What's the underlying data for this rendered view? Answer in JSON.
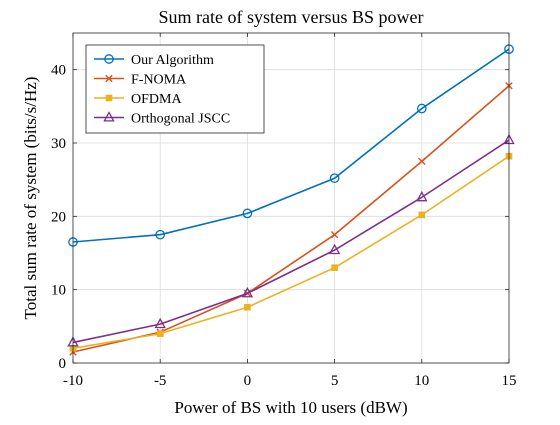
{
  "chart_data": {
    "type": "line",
    "title": "Sum rate of system versus BS power",
    "xlabel": "Power of BS with 10 users (dBW)",
    "ylabel": "Total sum rate of system (bits/s/Hz)",
    "x": [
      -10,
      -5,
      0,
      5,
      10,
      15
    ],
    "xlim": [
      -10,
      15
    ],
    "ylim": [
      0,
      45
    ],
    "xticks": [
      "-10",
      "-5",
      "0",
      "5",
      "10",
      "15"
    ],
    "yticks": [
      "0",
      "10",
      "20",
      "30",
      "40"
    ],
    "grid": true,
    "legend_position": "top-left",
    "series": [
      {
        "name": "Our Algorithm",
        "color": "#0072BD",
        "marker": "circle",
        "values": [
          16.5,
          17.5,
          20.4,
          25.2,
          34.7,
          42.8
        ]
      },
      {
        "name": "F-NOMA",
        "color": "#D95319",
        "marker": "x",
        "values": [
          1.5,
          4.2,
          9.5,
          17.5,
          27.5,
          37.8
        ]
      },
      {
        "name": "OFDMA",
        "color": "#EDB120",
        "marker": "square",
        "values": [
          2.0,
          4.0,
          7.6,
          13.0,
          20.2,
          28.2
        ]
      },
      {
        "name": "Orthogonal JSCC",
        "color": "#7E2F8E",
        "marker": "triangle",
        "values": [
          2.8,
          5.3,
          9.5,
          15.4,
          22.6,
          30.4
        ]
      }
    ]
  }
}
